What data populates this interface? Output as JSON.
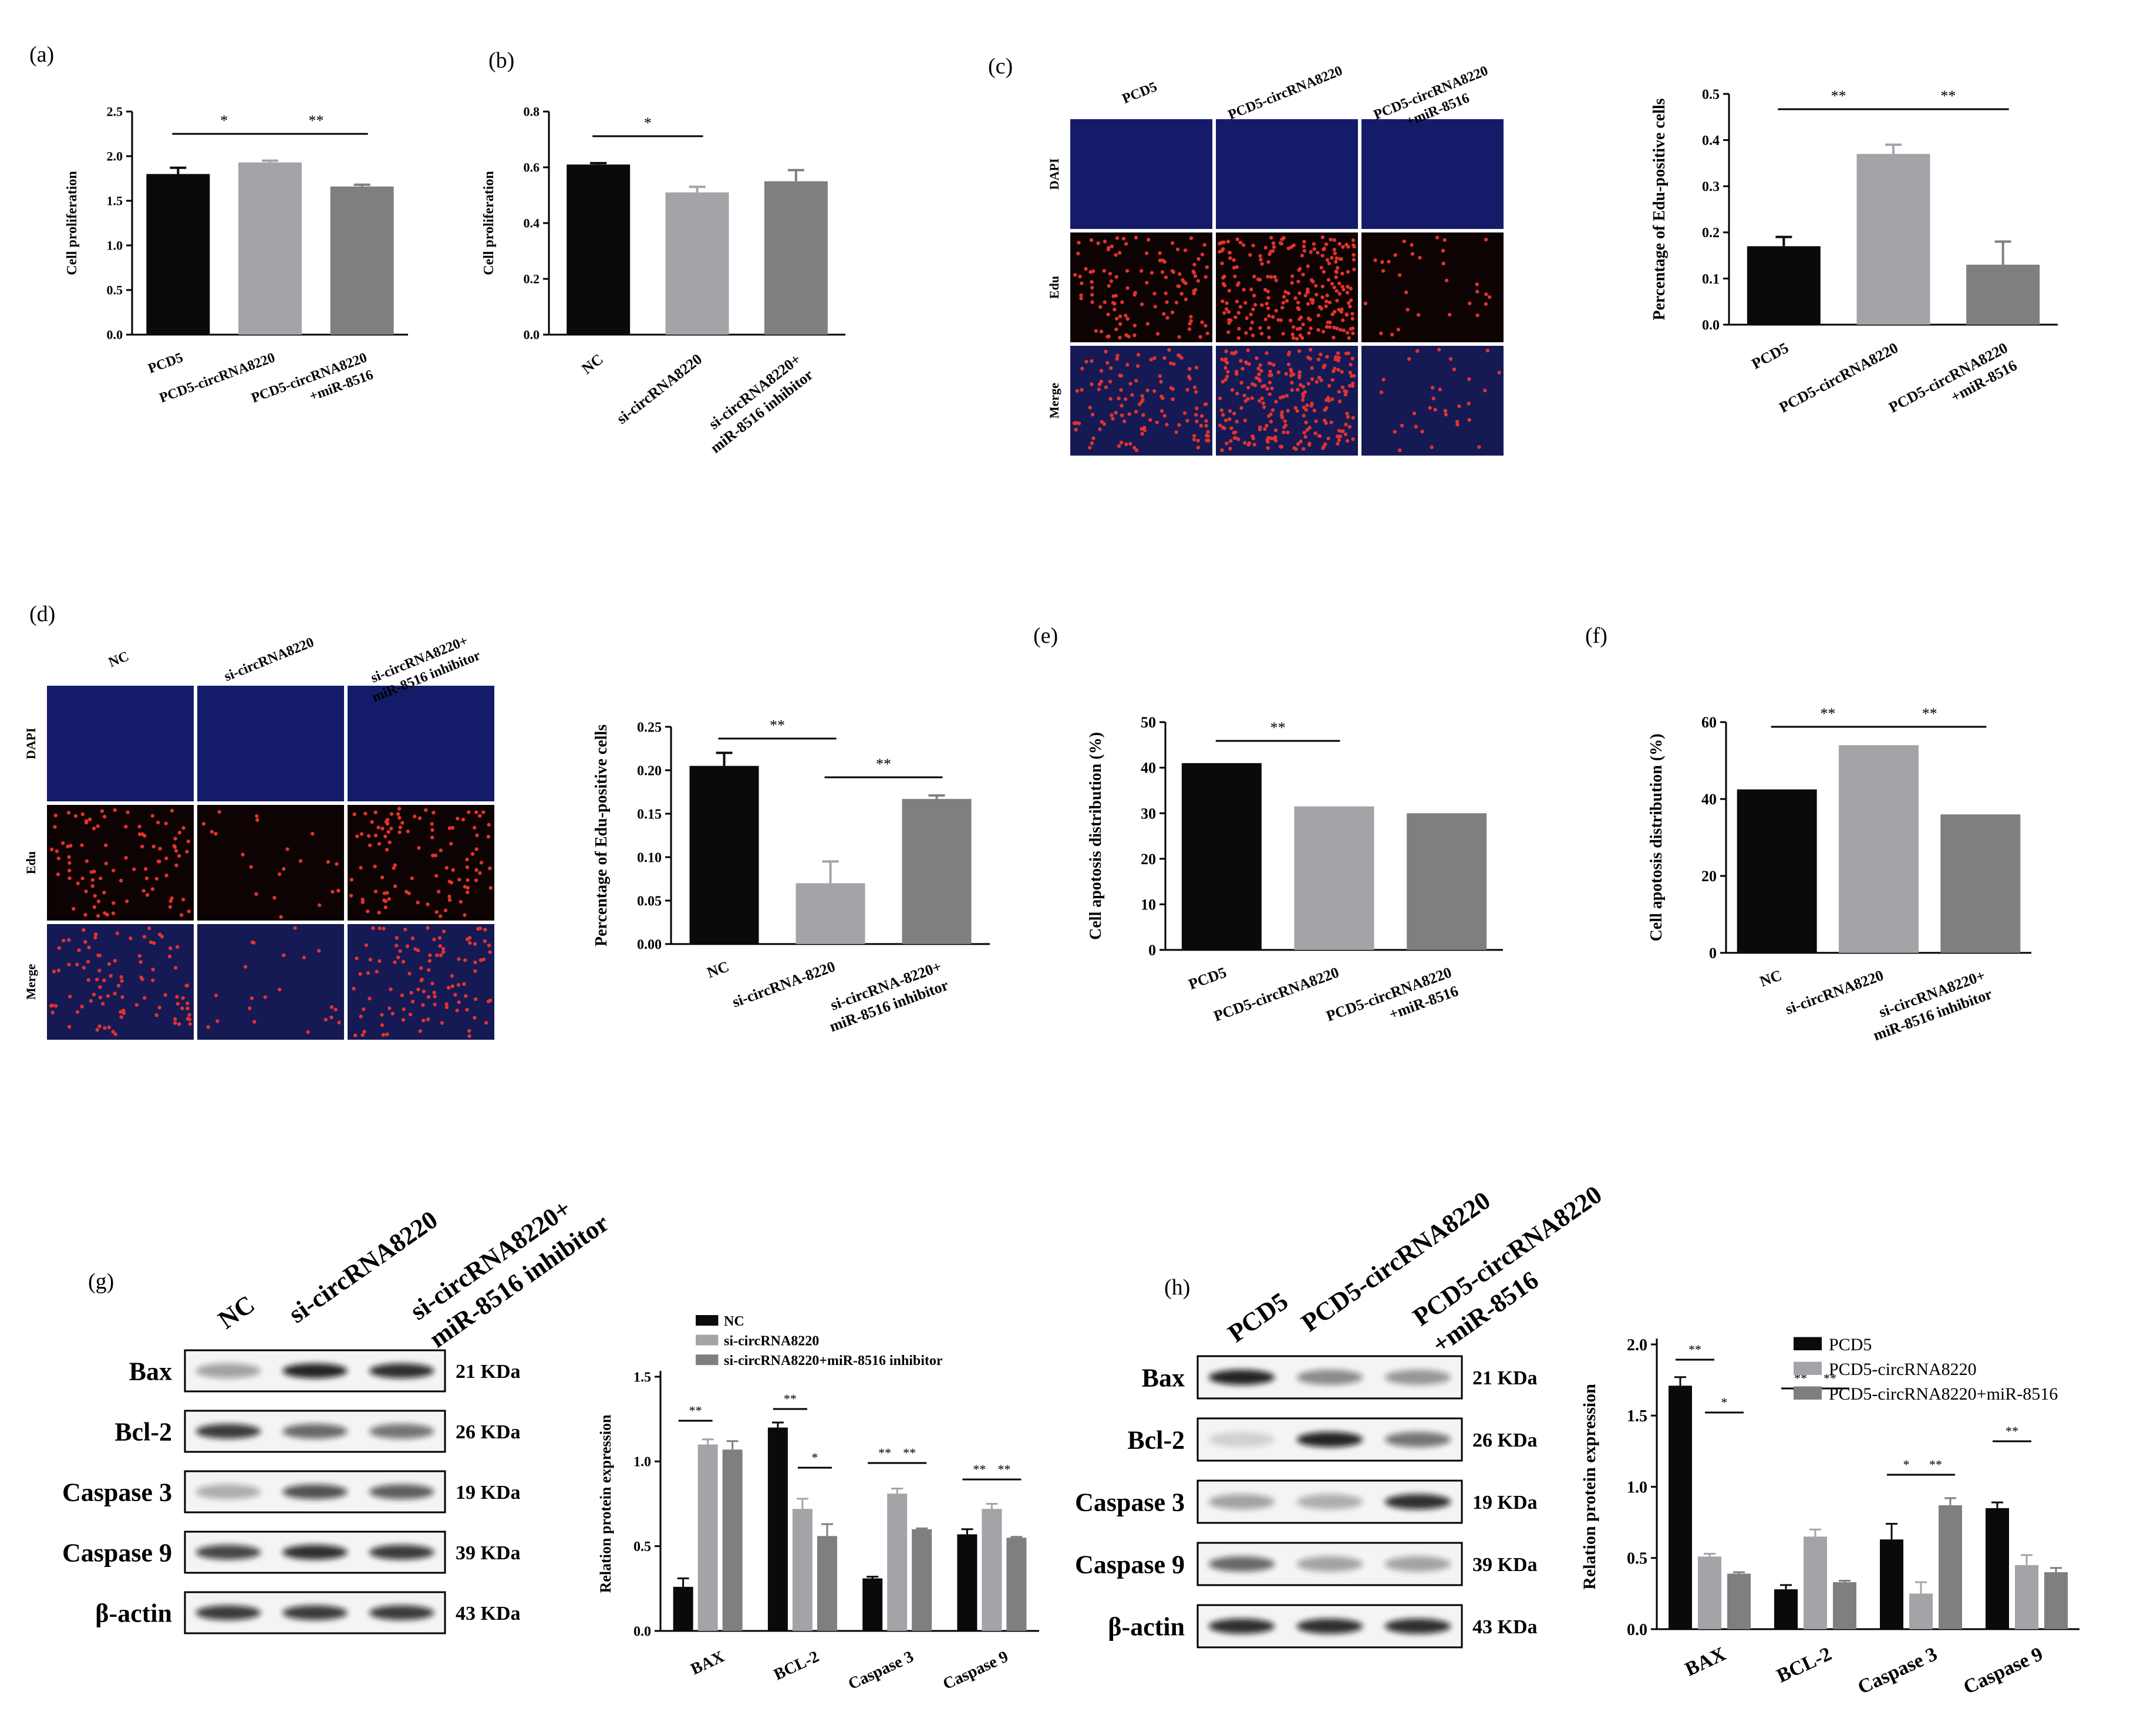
{
  "panel_labels": [
    "(a)",
    "(b)",
    "(c)",
    "(d)",
    "(e)",
    "(f)",
    "(g)",
    "(h)"
  ],
  "colors": {
    "black": "#0a0a0a",
    "light": "#a4a3a8",
    "mid": "#7f7f80"
  },
  "chart_data": [
    {
      "id": "a",
      "type": "bar",
      "categories": [
        "PCD5",
        "PCD5-circRNA8220",
        "PCD5-circRNA8220\n+miR-8516"
      ],
      "values": [
        1.8,
        1.93,
        1.66
      ],
      "errors": [
        0.07,
        0.02,
        0.02
      ],
      "ylabel": "Cell proliferation",
      "ylim": [
        0,
        2.5
      ],
      "yticks": [
        "0.0",
        "0.5",
        "1.0",
        "1.5",
        "2.0",
        "2.5"
      ],
      "sig": [
        {
          "from": 0,
          "to": 1,
          "label": "*"
        },
        {
          "from": 1,
          "to": 2,
          "label": "**"
        }
      ]
    },
    {
      "id": "b",
      "type": "bar",
      "categories": [
        "NC",
        "si-circRNA8220",
        "si-circRNA8220+\nmiR-8516 inhibitor"
      ],
      "values": [
        0.61,
        0.51,
        0.55
      ],
      "errors": [
        0.005,
        0.02,
        0.04
      ],
      "ylabel": "Cell proliferation",
      "ylim": [
        0,
        0.8
      ],
      "yticks": [
        "0.0",
        "0.2",
        "0.4",
        "0.6",
        "0.8"
      ],
      "sig": [
        {
          "from": 0,
          "to": 1,
          "label": "*"
        }
      ]
    },
    {
      "id": "c",
      "type": "bar",
      "categories": [
        "PCD5",
        "PCD5-circRNA8220",
        "PCD5-circRNA8220\n+miR-8516"
      ],
      "values": [
        0.17,
        0.37,
        0.13
      ],
      "errors": [
        0.02,
        0.02,
        0.05
      ],
      "ylabel": "Percentage of Edu-positive cells",
      "ylim": [
        0,
        0.5
      ],
      "yticks": [
        "0.0",
        "0.1",
        "0.2",
        "0.3",
        "0.4",
        "0.5"
      ],
      "sig": [
        {
          "from": 0,
          "to": 1,
          "label": "**"
        },
        {
          "from": 1,
          "to": 2,
          "label": "**"
        }
      ]
    },
    {
      "id": "d",
      "type": "bar",
      "categories": [
        "NC",
        "si-circRNA-8220",
        "si-circRNA-8220+\nmiR-8516 inhibitor"
      ],
      "values": [
        0.205,
        0.07,
        0.167
      ],
      "errors": [
        0.015,
        0.025,
        0.004
      ],
      "ylabel": "Percentage of Edu-positive cells",
      "ylim": [
        0,
        0.25
      ],
      "yticks": [
        "0.00",
        "0.05",
        "0.10",
        "0.15",
        "0.20",
        "0.25"
      ],
      "sig": [
        {
          "from": 0,
          "to": 1,
          "label": "**"
        },
        {
          "from": 1,
          "to": 2,
          "label": "**"
        }
      ]
    },
    {
      "id": "e",
      "type": "bar",
      "categories": [
        "PCD5",
        "PCD5-circRNA8220",
        "PCD5-circRNA8220\n+miR-8516"
      ],
      "values": [
        41,
        31.5,
        30
      ],
      "errors": [
        0,
        0,
        0
      ],
      "ylabel": "Cell apotosis distribution (%)",
      "ylim": [
        0,
        50
      ],
      "yticks": [
        "0",
        "10",
        "20",
        "30",
        "40",
        "50"
      ],
      "sig": [
        {
          "from": 0,
          "to": 1,
          "label": "**"
        }
      ]
    },
    {
      "id": "f",
      "type": "bar",
      "categories": [
        "NC",
        "si-circRNA8220",
        "si-circRNA8220+\nmiR-8516 inhibitor"
      ],
      "values": [
        42.5,
        54,
        36
      ],
      "errors": [
        0,
        0,
        0
      ],
      "ylabel": "Cell apotosis distribution (%)",
      "ylim": [
        0,
        60
      ],
      "yticks": [
        "0",
        "20",
        "40",
        "60"
      ],
      "sig": [
        {
          "from": 0,
          "to": 1,
          "label": "**"
        },
        {
          "from": 1,
          "to": 2,
          "label": "**"
        }
      ]
    },
    {
      "id": "g",
      "type": "grouped-bar",
      "categories": [
        "BAX",
        "BCL-2",
        "Caspase 3",
        "Caspase 9"
      ],
      "series": [
        {
          "name": "NC",
          "values": [
            0.26,
            1.2,
            0.31,
            0.57
          ],
          "errors": [
            0.05,
            0.03,
            0.01,
            0.03
          ]
        },
        {
          "name": "si-circRNA8220",
          "values": [
            1.1,
            0.72,
            0.81,
            0.72
          ],
          "errors": [
            0.03,
            0.06,
            0.03,
            0.03
          ]
        },
        {
          "name": "si-circRNA8220+miR-8516 inhibitor",
          "values": [
            1.07,
            0.56,
            0.6,
            0.55
          ],
          "errors": [
            0.05,
            0.07,
            0.005,
            0.005
          ]
        }
      ],
      "ylabel": "Relation protein expression",
      "ylim": [
        0,
        1.5
      ],
      "yticks": [
        "0.0",
        "0.5",
        "1.0",
        "1.5"
      ],
      "sig": [
        {
          "cat": 0,
          "from": 0,
          "to": 1,
          "label": "**"
        },
        {
          "cat": 1,
          "from": 0,
          "to": 1,
          "label": "**"
        },
        {
          "cat": 1,
          "from": 1,
          "to": 2,
          "label": "*"
        },
        {
          "cat": 2,
          "from": 0,
          "to": 1,
          "label": "**"
        },
        {
          "cat": 2,
          "from": 1,
          "to": 2,
          "label": "**"
        },
        {
          "cat": 3,
          "from": 0,
          "to": 1,
          "label": "**"
        },
        {
          "cat": 3,
          "from": 1,
          "to": 2,
          "label": "**"
        }
      ]
    },
    {
      "id": "h",
      "type": "grouped-bar",
      "categories": [
        "BAX",
        "BCL-2",
        "Caspase 3",
        "Caspase 9"
      ],
      "series": [
        {
          "name": "PCD5",
          "values": [
            1.71,
            0.28,
            0.63,
            0.85
          ],
          "errors": [
            0.06,
            0.03,
            0.11,
            0.04
          ]
        },
        {
          "name": "PCD5-circRNA8220",
          "values": [
            0.51,
            0.65,
            0.25,
            0.45
          ],
          "errors": [
            0.02,
            0.05,
            0.08,
            0.07
          ]
        },
        {
          "name": "PCD5-circRNA8220+miR-8516",
          "values": [
            0.39,
            0.33,
            0.87,
            0.4
          ],
          "errors": [
            0.01,
            0.01,
            0.05,
            0.03
          ]
        }
      ],
      "ylabel": "Relation protein expression",
      "ylim": [
        0,
        2.0
      ],
      "yticks": [
        "0.0",
        "0.5",
        "1.0",
        "1.5",
        "2.0"
      ],
      "sig": [
        {
          "cat": 0,
          "from": 0,
          "to": 1,
          "label": "**"
        },
        {
          "cat": 0,
          "from": 1,
          "to": 2,
          "label": "*"
        },
        {
          "cat": 1,
          "from": 0,
          "to": 1,
          "label": "**"
        },
        {
          "cat": 1,
          "from": 1,
          "to": 2,
          "label": "**"
        },
        {
          "cat": 2,
          "from": 0,
          "to": 1,
          "label": "*"
        },
        {
          "cat": 2,
          "from": 1,
          "to": 2,
          "label": "**"
        },
        {
          "cat": 3,
          "from": 0,
          "to": 1,
          "label": "**"
        }
      ]
    }
  ],
  "microscopy": {
    "c": {
      "columns": [
        "PCD5",
        "PCD5-circRNA8220",
        "PCD5-circRNA8220\n+miR-8516"
      ],
      "rows": [
        "DAPI",
        "Edu",
        "Merge"
      ]
    },
    "d": {
      "columns": [
        "NC",
        "si-circRNA8220",
        "si-circRNA8220+\nmiR-8516 inhibitor"
      ],
      "rows": [
        "DAPI",
        "Edu",
        "Merge"
      ]
    }
  },
  "blots": {
    "g": {
      "columns": [
        "NC",
        "si-circRNA8220",
        "si-circRNA8220+\nmiR-8516 inhibitor"
      ],
      "rows": [
        {
          "protein": "Bax",
          "size": "21 KDa"
        },
        {
          "protein": "Bcl-2",
          "size": "26 KDa"
        },
        {
          "protein": "Caspase 3",
          "size": "19 KDa"
        },
        {
          "protein": "Caspase 9",
          "size": "39 KDa"
        },
        {
          "protein": "β-actin",
          "size": "43 KDa"
        }
      ]
    },
    "h": {
      "columns": [
        "PCD5",
        "PCD5-circRNA8220",
        "PCD5-circRNA8220\n+miR-8516"
      ],
      "rows": [
        {
          "protein": "Bax",
          "size": "21 KDa"
        },
        {
          "protein": "Bcl-2",
          "size": "26 KDa"
        },
        {
          "protein": "Caspase 3",
          "size": "19 KDa"
        },
        {
          "protein": "Caspase 9",
          "size": "39 KDa"
        },
        {
          "protein": "β-actin",
          "size": "43 KDa"
        }
      ]
    }
  }
}
